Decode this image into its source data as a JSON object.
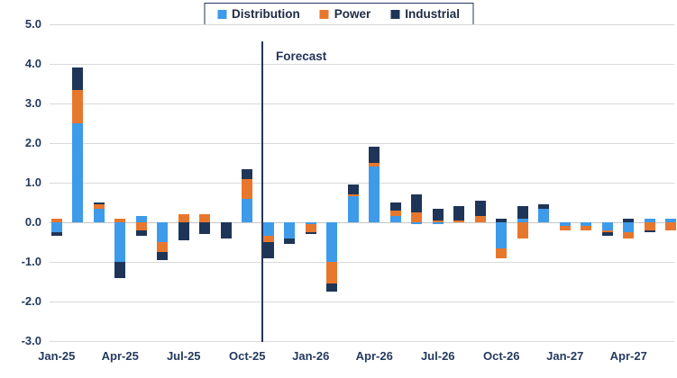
{
  "forecast": {
    "label": "Forecast"
  },
  "colors": {
    "distribution": "#3E9BE9",
    "power": "#E8772E",
    "industrial": "#1F3557",
    "axis_text": "#243A5E",
    "gridline": "#D9D9D9",
    "forecast_line": "#24365B",
    "legend_border": "#24365B",
    "background": "#FFFFFF"
  },
  "chart_data": {
    "type": "bar",
    "stacked": true,
    "title": "",
    "xlabel": "",
    "ylabel": "",
    "ylim": [
      -3.0,
      5.0
    ],
    "y_step": 1.0,
    "y_tick_labels": [
      "5.0",
      "4.0",
      "3.0",
      "2.0",
      "1.0",
      "0.0",
      "-1.0",
      "-2.0",
      "-3.0"
    ],
    "grid": "horizontal",
    "legend_position": "top-center",
    "categories": [
      "Jan-25",
      "Feb-25",
      "Mar-25",
      "Apr-25",
      "May-25",
      "Jun-25",
      "Jul-25",
      "Aug-25",
      "Sep-25",
      "Oct-25",
      "Nov-25",
      "Dec-25",
      "Jan-26",
      "Feb-26",
      "Mar-26",
      "Apr-26",
      "May-26",
      "Jun-26",
      "Jul-26",
      "Aug-26",
      "Sep-26",
      "Oct-26",
      "Nov-26",
      "Dec-26",
      "Jan-27",
      "Feb-27",
      "Mar-27",
      "Apr-27",
      "May-27",
      "Jun-27"
    ],
    "x_tick_interval": 3,
    "x_tick_labels": [
      "Jan-25",
      "Apr-25",
      "Jul-25",
      "Oct-25",
      "Jan-26",
      "Apr-26",
      "Jul-26",
      "Oct-26",
      "Jan-27",
      "Apr-27"
    ],
    "series": [
      {
        "name": "Distribution",
        "color": "#3E9BE9",
        "values": [
          -0.25,
          2.5,
          0.35,
          -1.0,
          0.15,
          -0.5,
          0.0,
          0.0,
          0.0,
          0.6,
          -0.35,
          -0.4,
          -0.05,
          -1.0,
          0.65,
          1.4,
          0.15,
          -0.05,
          -0.05,
          0.0,
          0.0,
          -0.65,
          0.1,
          0.35,
          -0.1,
          -0.1,
          -0.2,
          -0.25,
          0.1,
          0.1
        ]
      },
      {
        "name": "Power",
        "color": "#E8772E",
        "values": [
          0.1,
          0.85,
          0.1,
          0.1,
          -0.2,
          -0.25,
          0.2,
          0.2,
          0.0,
          0.5,
          -0.15,
          0.0,
          -0.2,
          -0.55,
          0.05,
          0.1,
          0.15,
          0.25,
          0.05,
          0.05,
          0.15,
          -0.25,
          -0.4,
          0.0,
          -0.1,
          -0.1,
          -0.05,
          -0.15,
          -0.2,
          -0.2
        ]
      },
      {
        "name": "Industrial",
        "color": "#1F3557",
        "values": [
          -0.1,
          0.55,
          0.05,
          -0.4,
          -0.15,
          -0.2,
          -0.45,
          -0.3,
          -0.4,
          0.25,
          -0.4,
          -0.15,
          -0.05,
          -0.2,
          0.25,
          0.4,
          0.2,
          0.45,
          0.3,
          0.35,
          0.4,
          0.1,
          0.3,
          0.1,
          0.0,
          0.0,
          -0.1,
          0.1,
          -0.05,
          0.0
        ]
      }
    ],
    "annotation": {
      "label": "Forecast",
      "after_category": "Oct-25"
    }
  }
}
